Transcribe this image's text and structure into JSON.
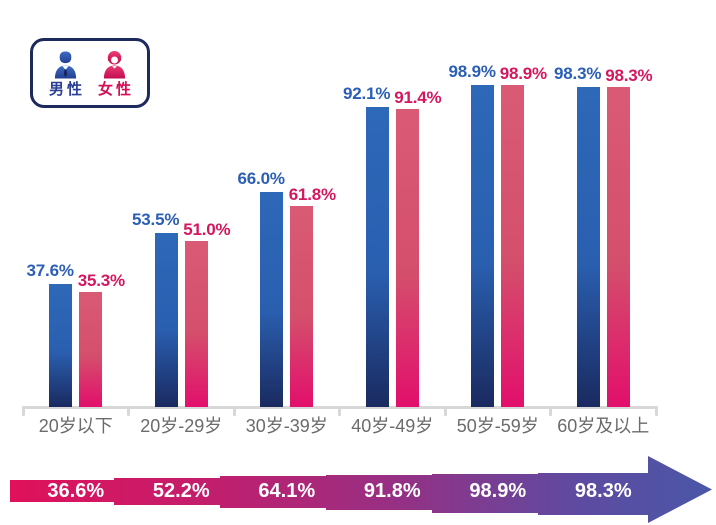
{
  "legend": {
    "male": {
      "label": "男性",
      "color": "#2b3f94"
    },
    "female": {
      "label": "女性",
      "color": "#d50f56"
    }
  },
  "chart_data": {
    "type": "bar",
    "categories": [
      "20岁以下",
      "20岁-29岁",
      "30岁-39岁",
      "40岁-49岁",
      "50岁-59岁",
      "60岁及以上"
    ],
    "series": [
      {
        "name": "男性",
        "color": "#2b5eb5",
        "values": [
          37.6,
          53.5,
          66.0,
          92.1,
          98.9,
          98.3
        ]
      },
      {
        "name": "女性",
        "color": "#d4175f",
        "values": [
          35.3,
          51.0,
          61.8,
          91.4,
          98.9,
          98.3
        ]
      }
    ],
    "value_suffix": "%",
    "ylim": [
      0,
      100
    ],
    "grid": false,
    "legend_position": "top-left",
    "arrow_totals": [
      "36.6%",
      "52.2%",
      "64.1%",
      "91.8%",
      "98.9%",
      "98.3%"
    ],
    "arrow_gradient": [
      "#e0115a",
      "#c01f6e",
      "#963084",
      "#5f4aa0",
      "#4a57a8"
    ]
  },
  "colors": {
    "male_bar_top": "#2e68b8",
    "male_bar_bottom": "#1a2a60",
    "female_bar_top": "#da5a75",
    "female_bar_bottom": "#e20f6c",
    "axis": "#d8d8d8",
    "category_label": "#6b6b6b",
    "legend_border": "#1d2a5c"
  }
}
